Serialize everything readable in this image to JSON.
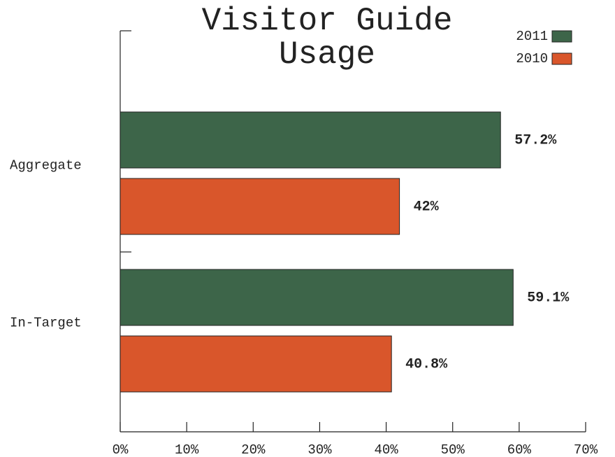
{
  "chart_data": {
    "type": "barh",
    "title": "Visitor Guide Usage",
    "categories": [
      "Aggregate",
      "In-Target"
    ],
    "series": [
      {
        "name": "2011",
        "color": "#3d6549",
        "values": [
          57.2,
          59.1
        ],
        "value_labels": [
          "57.2%",
          "59.1%"
        ]
      },
      {
        "name": "2010",
        "color": "#d9562b",
        "values": [
          42,
          40.8
        ],
        "value_labels": [
          "42%",
          "40.8%"
        ]
      }
    ],
    "xlim": [
      0,
      70
    ],
    "xticks": [
      {
        "value": 0,
        "label": "0%"
      },
      {
        "value": 10,
        "label": "10%"
      },
      {
        "value": 20,
        "label": "20%"
      },
      {
        "value": 30,
        "label": "30%"
      },
      {
        "value": 40,
        "label": "40%"
      },
      {
        "value": 50,
        "label": "50%"
      },
      {
        "value": 60,
        "label": "60%"
      },
      {
        "value": 70,
        "label": "70%"
      }
    ],
    "legend": "top-right"
  }
}
